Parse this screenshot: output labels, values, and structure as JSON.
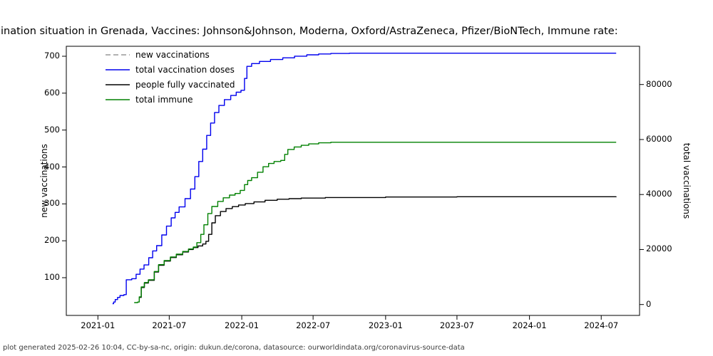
{
  "title": "ination situation in Grenada, Vaccines: Johnson&Johnson, Moderna, Oxford/AstraZeneca, Pfizer/BioNTech, Immune rate:",
  "footer": "plot generated 2025-02-26 10:04, CC-by-sa-nc, origin: dukun.de/corona, datasource: ourworldindata.org/coronavirus-source-data",
  "axes": {
    "left_label": "new vaccinations",
    "right_label": "total vaccinations",
    "left_ticks": [
      100,
      200,
      300,
      400,
      500,
      600,
      700
    ],
    "right_ticks": [
      0,
      20000,
      40000,
      60000,
      80000
    ],
    "x_ticks": [
      "2021-01",
      "2021-07",
      "2022-01",
      "2022-07",
      "2023-01",
      "2023-07",
      "2024-01",
      "2024-07"
    ]
  },
  "legend": {
    "items": [
      {
        "label": "new vaccinations",
        "color": "#999999",
        "style": "dashed"
      },
      {
        "label": "total vaccination doses",
        "color": "#0000ee",
        "style": "solid"
      },
      {
        "label": "people fully vaccinated",
        "color": "#000000",
        "style": "solid"
      },
      {
        "label": "total immune",
        "color": "#008000",
        "style": "solid"
      }
    ]
  },
  "chart_data": {
    "type": "line",
    "title": "ination situation in Grenada, Vaccines: Johnson&Johnson, Moderna, Oxford/AstraZeneca, Pfizer/BioNTech, Immune rate:",
    "xlabel": "",
    "ylabel_left": "new vaccinations",
    "ylabel_right": "total vaccinations",
    "x_range": [
      "2020-10-13",
      "2024-10-06"
    ],
    "ylim_left": [
      -3,
      727
    ],
    "ylim_right": [
      -3960,
      93900
    ],
    "grid": false,
    "legend_position": "upper left",
    "line_style": "step-after",
    "series": [
      {
        "name": "new vaccinations",
        "color": "#999999",
        "style": "dashed",
        "axis": "left",
        "visible": false,
        "points": []
      },
      {
        "name": "total vaccination doses",
        "color": "#0000ee",
        "style": "solid",
        "axis": "right",
        "visible": true,
        "points": [
          [
            "2021-02-07",
            300
          ],
          [
            "2021-02-10",
            900
          ],
          [
            "2021-02-14",
            1800
          ],
          [
            "2021-02-20",
            2600
          ],
          [
            "2021-02-26",
            3300
          ],
          [
            "2021-03-08",
            3600
          ],
          [
            "2021-03-14",
            9000
          ],
          [
            "2021-03-28",
            9400
          ],
          [
            "2021-04-08",
            11000
          ],
          [
            "2021-04-18",
            12900
          ],
          [
            "2021-04-28",
            14400
          ],
          [
            "2021-05-10",
            17000
          ],
          [
            "2021-05-20",
            19500
          ],
          [
            "2021-05-30",
            21400
          ],
          [
            "2021-06-12",
            25300
          ],
          [
            "2021-06-24",
            28500
          ],
          [
            "2021-07-06",
            31500
          ],
          [
            "2021-07-16",
            33500
          ],
          [
            "2021-07-26",
            35500
          ],
          [
            "2021-08-10",
            38500
          ],
          [
            "2021-08-24",
            42000
          ],
          [
            "2021-09-04",
            46500
          ],
          [
            "2021-09-14",
            52000
          ],
          [
            "2021-09-24",
            56500
          ],
          [
            "2021-10-04",
            61500
          ],
          [
            "2021-10-14",
            66000
          ],
          [
            "2021-10-24",
            69800
          ],
          [
            "2021-11-04",
            72400
          ],
          [
            "2021-11-18",
            74500
          ],
          [
            "2021-12-04",
            76000
          ],
          [
            "2021-12-18",
            77200
          ],
          [
            "2021-12-30",
            77900
          ],
          [
            "2022-01-08",
            82200
          ],
          [
            "2022-01-14",
            86600
          ],
          [
            "2022-01-26",
            87600
          ],
          [
            "2022-02-15",
            88400
          ],
          [
            "2022-03-15",
            89100
          ],
          [
            "2022-04-15",
            89700
          ],
          [
            "2022-05-15",
            90300
          ],
          [
            "2022-06-15",
            90800
          ],
          [
            "2022-07-15",
            91100
          ],
          [
            "2022-08-15",
            91300
          ],
          [
            "2022-10-01",
            91400
          ],
          [
            "2024-08-08",
            91400
          ]
        ]
      },
      {
        "name": "people fully vaccinated",
        "color": "#000000",
        "style": "solid",
        "axis": "right",
        "visible": true,
        "points": [
          [
            "2021-04-16",
            2600
          ],
          [
            "2021-04-21",
            6200
          ],
          [
            "2021-04-29",
            7800
          ],
          [
            "2021-05-09",
            8800
          ],
          [
            "2021-05-24",
            11800
          ],
          [
            "2021-06-04",
            14300
          ],
          [
            "2021-06-18",
            15800
          ],
          [
            "2021-07-04",
            17100
          ],
          [
            "2021-07-19",
            18100
          ],
          [
            "2021-08-04",
            19100
          ],
          [
            "2021-08-19",
            20000
          ],
          [
            "2021-08-31",
            20700
          ],
          [
            "2021-09-12",
            21300
          ],
          [
            "2021-09-24",
            22000
          ],
          [
            "2021-10-02",
            23000
          ],
          [
            "2021-10-09",
            25500
          ],
          [
            "2021-10-17",
            29700
          ],
          [
            "2021-10-26",
            32300
          ],
          [
            "2021-11-08",
            33800
          ],
          [
            "2021-11-22",
            34900
          ],
          [
            "2021-12-08",
            35600
          ],
          [
            "2021-12-24",
            36200
          ],
          [
            "2022-01-10",
            36700
          ],
          [
            "2022-02-01",
            37300
          ],
          [
            "2022-03-01",
            37900
          ],
          [
            "2022-04-01",
            38300
          ],
          [
            "2022-05-01",
            38500
          ],
          [
            "2022-06-01",
            38700
          ],
          [
            "2022-08-01",
            38900
          ],
          [
            "2023-01-01",
            39100
          ],
          [
            "2023-07-01",
            39200
          ],
          [
            "2024-08-08",
            39270
          ]
        ]
      },
      {
        "name": "total immune",
        "color": "#008000",
        "style": "solid",
        "axis": "right",
        "visible": true,
        "points": [
          [
            "2021-04-03",
            700
          ],
          [
            "2021-04-12",
            900
          ],
          [
            "2021-04-16",
            2800
          ],
          [
            "2021-04-21",
            6400
          ],
          [
            "2021-04-29",
            8000
          ],
          [
            "2021-05-09",
            9000
          ],
          [
            "2021-05-24",
            12000
          ],
          [
            "2021-06-04",
            14500
          ],
          [
            "2021-06-18",
            16000
          ],
          [
            "2021-07-04",
            17300
          ],
          [
            "2021-07-19",
            18300
          ],
          [
            "2021-08-04",
            19300
          ],
          [
            "2021-08-19",
            20200
          ],
          [
            "2021-08-31",
            20900
          ],
          [
            "2021-09-09",
            22500
          ],
          [
            "2021-09-19",
            25500
          ],
          [
            "2021-09-27",
            29000
          ],
          [
            "2021-10-07",
            33100
          ],
          [
            "2021-10-17",
            35650
          ],
          [
            "2021-11-01",
            37500
          ],
          [
            "2021-11-15",
            38800
          ],
          [
            "2021-12-01",
            39800
          ],
          [
            "2021-12-15",
            40400
          ],
          [
            "2021-12-28",
            41500
          ],
          [
            "2022-01-08",
            43600
          ],
          [
            "2022-01-16",
            45100
          ],
          [
            "2022-01-26",
            46100
          ],
          [
            "2022-02-10",
            48100
          ],
          [
            "2022-02-24",
            50100
          ],
          [
            "2022-03-10",
            51300
          ],
          [
            "2022-03-24",
            52000
          ],
          [
            "2022-04-10",
            52400
          ],
          [
            "2022-04-20",
            54600
          ],
          [
            "2022-04-28",
            56400
          ],
          [
            "2022-05-14",
            57300
          ],
          [
            "2022-06-01",
            57900
          ],
          [
            "2022-06-20",
            58400
          ],
          [
            "2022-07-15",
            58800
          ],
          [
            "2022-08-15",
            59000
          ],
          [
            "2024-08-08",
            59000
          ]
        ]
      }
    ]
  }
}
